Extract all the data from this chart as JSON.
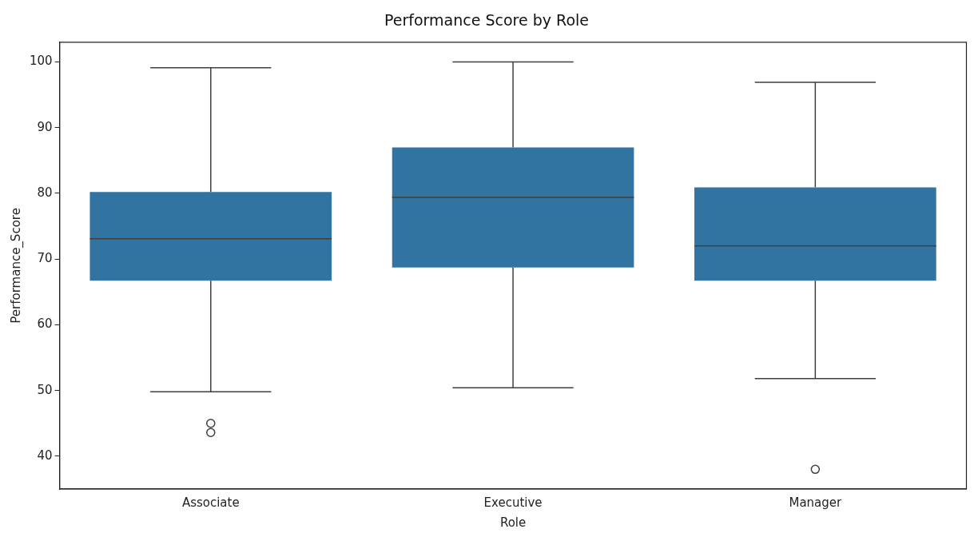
{
  "chart_data": {
    "type": "box",
    "title": "Performance Score by Role",
    "xlabel": "Role",
    "ylabel": "Performance_Score",
    "categories": [
      "Associate",
      "Executive",
      "Manager"
    ],
    "color": "#3274a1",
    "boxes": [
      {
        "low": 49.8,
        "q1": 66.7,
        "median": 73.1,
        "q3": 80.2,
        "high": 99.1,
        "outliers": [
          45.0,
          43.6
        ]
      },
      {
        "low": 50.4,
        "q1": 68.7,
        "median": 79.4,
        "q3": 87.0,
        "high": 100
      },
      {
        "low": 51.8,
        "q1": 66.7,
        "median": 72.0,
        "q3": 80.9,
        "high": 96.9,
        "outliers": [
          38.0
        ]
      }
    ],
    "ylim": [
      35,
      103
    ],
    "yticks": [
      40,
      50,
      60,
      70,
      80,
      90,
      100
    ],
    "grid": false
  }
}
